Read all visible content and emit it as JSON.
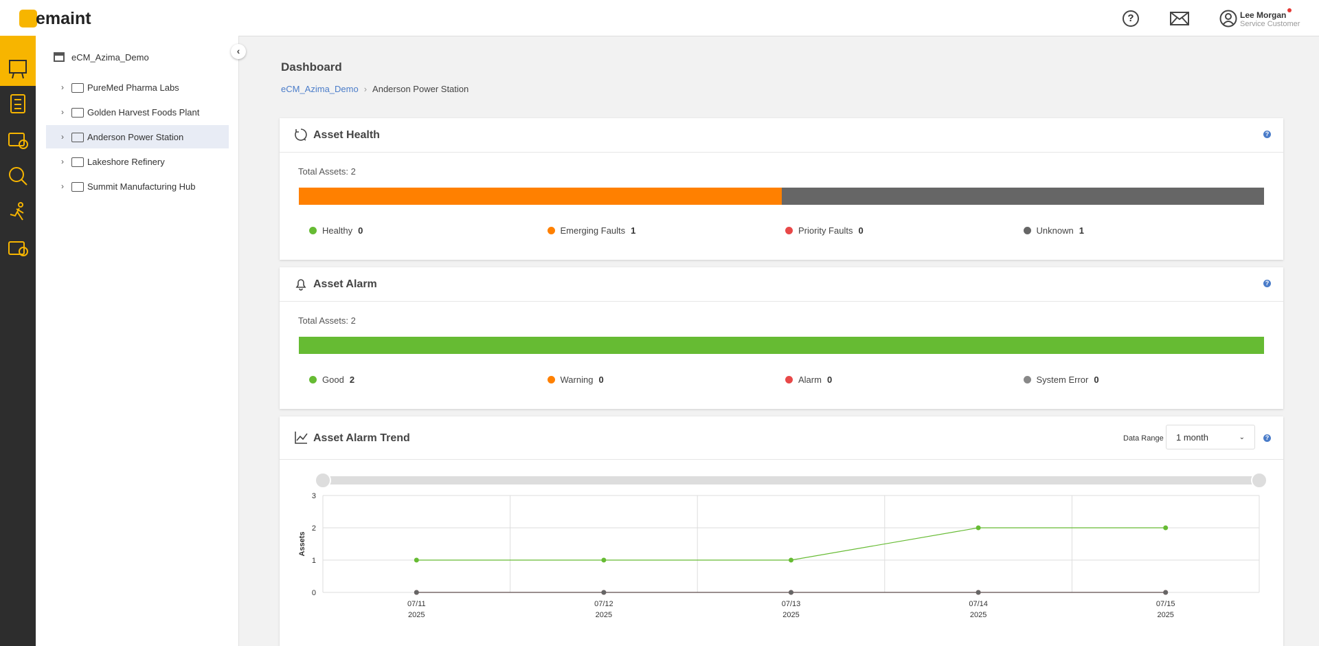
{
  "header": {
    "logo": "emaint",
    "user_name": "Lee Morgan",
    "user_role": "Service Customer",
    "help_icon": "?"
  },
  "tree": {
    "root": "eCM_Azima_Demo",
    "items": [
      "PureMed Pharma Labs",
      "Golden Harvest Foods Plant",
      "Anderson Power Station",
      "Lakeshore Refinery",
      "Summit Manufacturing Hub"
    ],
    "selected": 2
  },
  "page": {
    "title": "Dashboard",
    "breadcrumb": [
      "eCM_Azima_Demo",
      "Anderson Power Station"
    ]
  },
  "health": {
    "title": "Asset Health",
    "total_label": "Total Assets:",
    "total": 2,
    "items": [
      {
        "label": "Healthy",
        "count": 0,
        "color": "#66bb33"
      },
      {
        "label": "Emerging Faults",
        "count": 1,
        "color": "#ff8000"
      },
      {
        "label": "Priority Faults",
        "count": 0,
        "color": "#e84848"
      },
      {
        "label": "Unknown",
        "count": 1,
        "color": "#666666"
      }
    ]
  },
  "alarm": {
    "title": "Asset Alarm",
    "total_label": "Total Assets:",
    "total": 2,
    "items": [
      {
        "label": "Good",
        "count": 2,
        "color": "#66bb33"
      },
      {
        "label": "Warning",
        "count": 0,
        "color": "#ff8000"
      },
      {
        "label": "Alarm",
        "count": 0,
        "color": "#e84848"
      },
      {
        "label": "System Error",
        "count": 0,
        "color": "#888888"
      }
    ]
  },
  "trend": {
    "title": "Asset Alarm Trend",
    "range_label": "Data Range",
    "range_value": "1 month"
  },
  "chart_data": {
    "type": "line",
    "y_label": "Assets",
    "categories": [
      [
        "07/11",
        "2025"
      ],
      [
        "07/12",
        "2025"
      ],
      [
        "07/13",
        "2025"
      ],
      [
        "07/14",
        "2025"
      ],
      [
        "07/15",
        "2025"
      ]
    ],
    "series": [
      {
        "color": "#66bb33",
        "values": [
          1,
          1,
          1,
          2,
          2
        ]
      },
      {
        "color": "#c0504d",
        "values": [
          0,
          0,
          0,
          0,
          0
        ]
      },
      {
        "color": "#666666",
        "values": [
          0,
          0,
          0,
          0,
          0
        ]
      }
    ],
    "ylim": [
      0,
      3
    ],
    "yticks": [
      0,
      1,
      2,
      3
    ],
    "grid": true
  }
}
